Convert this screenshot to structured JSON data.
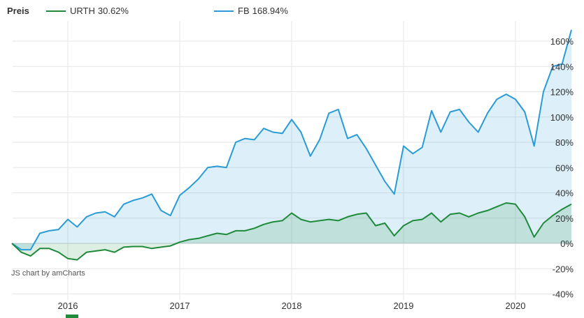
{
  "legend": {
    "title": "Preis",
    "items": [
      {
        "name": "URTH",
        "value": "30.62%",
        "color": "#1e8a3a"
      },
      {
        "name": "FB",
        "value": "168.94%",
        "color": "#2a9bd6"
      }
    ]
  },
  "credit": "JS chart by amCharts",
  "chart_data": {
    "type": "area",
    "x_ticks": [
      "2016",
      "2017",
      "2018",
      "2019",
      "2020"
    ],
    "y_ticks": [
      -40,
      -20,
      0,
      20,
      40,
      60,
      80,
      100,
      120,
      140,
      160
    ],
    "y_unit": "%",
    "ylim": [
      -40,
      170
    ],
    "xlim": [
      2015.5,
      2020.5
    ],
    "grid": true,
    "legend_position": "top",
    "x": [
      2015.5,
      2015.583,
      2015.667,
      2015.75,
      2015.833,
      2015.917,
      2016.0,
      2016.083,
      2016.167,
      2016.25,
      2016.333,
      2016.417,
      2016.5,
      2016.583,
      2016.667,
      2016.75,
      2016.833,
      2016.917,
      2017.0,
      2017.083,
      2017.167,
      2017.25,
      2017.333,
      2017.417,
      2017.5,
      2017.583,
      2017.667,
      2017.75,
      2017.833,
      2017.917,
      2018.0,
      2018.083,
      2018.167,
      2018.25,
      2018.333,
      2018.417,
      2018.5,
      2018.583,
      2018.667,
      2018.75,
      2018.833,
      2018.917,
      2019.0,
      2019.083,
      2019.167,
      2019.25,
      2019.333,
      2019.417,
      2019.5,
      2019.583,
      2019.667,
      2019.75,
      2019.833,
      2019.917,
      2020.0,
      2020.083,
      2020.167,
      2020.25,
      2020.333,
      2020.417,
      2020.5
    ],
    "series": [
      {
        "name": "URTH",
        "color": "#1e8a3a",
        "fill": "rgba(30,138,58,0.15)",
        "values": [
          0,
          -7,
          -10,
          -4,
          -4,
          -7,
          -12,
          -13,
          -7,
          -6,
          -5,
          -7,
          -3,
          -2.5,
          -2.5,
          -4,
          -3,
          -2,
          1,
          3,
          4,
          6,
          8,
          7,
          10,
          10,
          12,
          15,
          17,
          18,
          24,
          19,
          17,
          18,
          19,
          18,
          21,
          23,
          24,
          14,
          16,
          6,
          14,
          18,
          19,
          24,
          17,
          23,
          24,
          21,
          24,
          26,
          29,
          32,
          31,
          21,
          5,
          16,
          22,
          27,
          31
        ]
      },
      {
        "name": "FB",
        "color": "#2a9bd6",
        "fill": "rgba(42,155,214,0.16)",
        "values": [
          0,
          -5,
          -5,
          8,
          10,
          11,
          19,
          13,
          21,
          24,
          25,
          21,
          31,
          34,
          36,
          39,
          26,
          22,
          38,
          44,
          51,
          60,
          61,
          60,
          80,
          83,
          82,
          91,
          88,
          87,
          98,
          88,
          69,
          82,
          103,
          106,
          83,
          86,
          75,
          62,
          49,
          39,
          77,
          71,
          76,
          105,
          88,
          104,
          106,
          96,
          88,
          103,
          114,
          118,
          114,
          104,
          77,
          120,
          140,
          142,
          169
        ]
      }
    ]
  }
}
